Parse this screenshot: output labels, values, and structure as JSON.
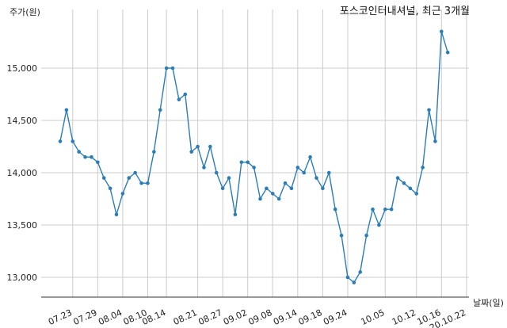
{
  "chart_data": {
    "type": "line",
    "title": "포스코인터내셔널, 최근 3개월",
    "xlabel": "날짜(일)",
    "ylabel": "주가(원)",
    "ylim": [
      12800,
      15500
    ],
    "yticks": [
      13000,
      13500,
      14000,
      14500,
      15000
    ],
    "ytick_labels": [
      "13,000",
      "13,500",
      "14,000",
      "14,500",
      "15,000"
    ],
    "xtick_labels": [
      "07.23",
      "07.29",
      "08.04",
      "08.10",
      "08.14",
      "08.21",
      "08.27",
      "09.02",
      "09.08",
      "09.14",
      "09.18",
      "09.24",
      "10.05",
      "10.12",
      "10.16",
      "20.10.22"
    ],
    "xtick_index": [
      2,
      6,
      10,
      14,
      17,
      22,
      26,
      30,
      34,
      38,
      42,
      46,
      52,
      57,
      61,
      65
    ],
    "grid": true,
    "color": "#2a7db6",
    "values": [
      14300,
      14600,
      14300,
      14200,
      14150,
      14150,
      14100,
      13950,
      13850,
      13600,
      13800,
      13950,
      14000,
      13900,
      13900,
      14200,
      14600,
      15000,
      15000,
      14700,
      14750,
      14200,
      14250,
      14050,
      14250,
      14000,
      13850,
      13950,
      13600,
      14100,
      14100,
      14050,
      13750,
      13850,
      13800,
      13750,
      13900,
      13850,
      14050,
      14000,
      14150,
      13950,
      13850,
      14000,
      13650,
      13400,
      13000,
      12950,
      13050,
      13400,
      13650,
      13500,
      13650,
      13650,
      13950,
      13900,
      13850,
      13800,
      14050,
      14600,
      14300,
      15350,
      15150
    ]
  }
}
